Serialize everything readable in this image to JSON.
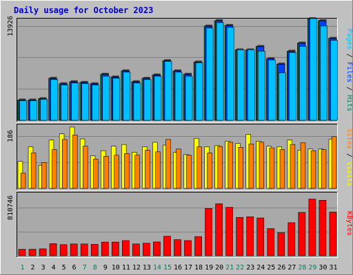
{
  "title": "Daily usage for October 2023",
  "colors": {
    "background": "#C0C0C0",
    "plot": "#A9A9A9",
    "title": "#0000CC",
    "hits": "#00805C",
    "files": "#0040FF",
    "pages": "#00C0FF",
    "visits": "#FFFF00",
    "sites": "#FF8000",
    "kbytes": "#FF0000",
    "weekend_day": "#00805C",
    "weekday": "#0000CC"
  },
  "chart_data": [
    {
      "type": "bar",
      "panel": "hits-files-pages",
      "categories": [
        "1",
        "2",
        "3",
        "4",
        "5",
        "6",
        "7",
        "8",
        "9",
        "10",
        "11",
        "12",
        "13",
        "14",
        "15",
        "16",
        "17",
        "18",
        "19",
        "20",
        "21",
        "22",
        "23",
        "24",
        "25",
        "26",
        "27",
        "28",
        "29",
        "30",
        "31"
      ],
      "ytick": "13926",
      "ylim": [
        0,
        14900
      ],
      "axis_label": {
        "pages": "Pages",
        "files": "Files",
        "hits": "Hits",
        "sep": " / "
      },
      "series": [
        {
          "name": "Hits",
          "values": [
            3000,
            3000,
            3200,
            6200,
            5400,
            5700,
            5600,
            5400,
            6800,
            6400,
            7300,
            5700,
            6200,
            6700,
            8800,
            7300,
            6800,
            8600,
            13900,
            14700,
            14000,
            10400,
            10400,
            10900,
            9100,
            8300,
            10200,
            11400,
            15000,
            14700,
            12100
          ]
        },
        {
          "name": "Files",
          "values": [
            2950,
            2950,
            3150,
            6150,
            5350,
            5650,
            5550,
            5350,
            6750,
            6350,
            7250,
            5650,
            6150,
            6650,
            8750,
            7250,
            6750,
            8550,
            13850,
            14650,
            13950,
            10350,
            10350,
            10850,
            9050,
            8250,
            10150,
            11350,
            14950,
            14650,
            12050
          ]
        },
        {
          "name": "Pages",
          "values": [
            2900,
            2900,
            3100,
            6000,
            5200,
            5500,
            5400,
            5200,
            6500,
            6200,
            7100,
            5500,
            6000,
            6500,
            8700,
            7100,
            6500,
            8500,
            13600,
            14400,
            13700,
            10400,
            10400,
            10200,
            8900,
            7000,
            10000,
            10900,
            15000,
            13900,
            11800
          ]
        }
      ]
    },
    {
      "type": "bar",
      "panel": "visits-sites",
      "categories": [
        "1",
        "2",
        "3",
        "4",
        "5",
        "6",
        "7",
        "8",
        "9",
        "10",
        "11",
        "12",
        "13",
        "14",
        "15",
        "16",
        "17",
        "18",
        "19",
        "20",
        "21",
        "22",
        "23",
        "24",
        "25",
        "26",
        "27",
        "28",
        "29",
        "30",
        "31"
      ],
      "ytick": "186",
      "ylim": [
        0,
        225
      ],
      "axis_label": {
        "sites": "Sites",
        "visits": "Visits",
        "sep": " / "
      },
      "series": [
        {
          "name": "Visits",
          "values": [
            96,
            148,
            82,
            172,
            194,
            218,
            176,
            116,
            134,
            150,
            156,
            128,
            148,
            164,
            154,
            128,
            120,
            178,
            148,
            152,
            168,
            160,
            192,
            168,
            150,
            148,
            172,
            136,
            140,
            140,
            175
          ]
        },
        {
          "name": "Sites",
          "values": [
            54,
            126,
            92,
            138,
            174,
            190,
            150,
            104,
            114,
            118,
            124,
            118,
            136,
            130,
            174,
            140,
            118,
            148,
            126,
            149,
            164,
            146,
            158,
            164,
            144,
            138,
            156,
            162,
            134,
            138,
            184
          ]
        }
      ]
    },
    {
      "type": "bar",
      "panel": "kbytes",
      "categories": [
        "1",
        "2",
        "3",
        "4",
        "5",
        "6",
        "7",
        "8",
        "9",
        "10",
        "11",
        "12",
        "13",
        "14",
        "15",
        "16",
        "17",
        "18",
        "19",
        "20",
        "21",
        "22",
        "23",
        "24",
        "25",
        "26",
        "27",
        "28",
        "29",
        "30",
        "31"
      ],
      "ytick": "810746",
      "ylim": [
        0,
        1060000
      ],
      "axis_label": {
        "kbytes": "KBytes"
      },
      "series": [
        {
          "name": "KBytes",
          "values": [
            110000,
            110000,
            117000,
            205000,
            188000,
            200000,
            200000,
            193000,
            232000,
            232000,
            257000,
            200000,
            212000,
            234000,
            330000,
            273000,
            257000,
            325000,
            800000,
            880000,
            820000,
            650000,
            660000,
            640000,
            460000,
            390000,
            560000,
            735000,
            960000,
            940000,
            740000
          ]
        }
      ]
    }
  ]
}
